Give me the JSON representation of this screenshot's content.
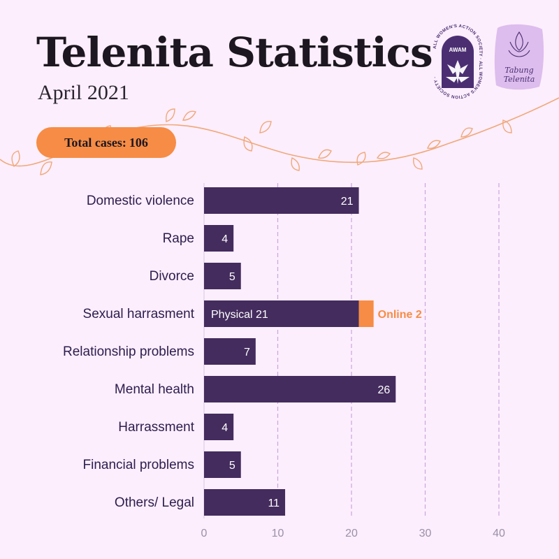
{
  "header": {
    "title": "Telenita Statistics",
    "subtitle": "April 2021",
    "badge_label": "Total cases:",
    "badge_value": "106"
  },
  "logos": {
    "awam_text": "AWAM",
    "awam_ring_text": "ALL WOMEN'S ACTION SOCIETY · ALL WOMEN'S ACTION SOCIETY ·",
    "telenita_line1": "Tabung",
    "telenita_line2": "Telenita"
  },
  "colors": {
    "background": "#fceefc",
    "bar": "#442c5e",
    "accent": "#f68c45",
    "grid": "#c9a6e0"
  },
  "chart_data": {
    "type": "bar",
    "orientation": "horizontal",
    "categories": [
      "Domestic violence",
      "Rape",
      "Divorce",
      "Sexual harrasment",
      "Relationship problems",
      "Mental health",
      "Harrassment",
      "Financial problems",
      "Others/ Legal"
    ],
    "values": [
      21,
      4,
      5,
      21,
      7,
      26,
      4,
      5,
      11
    ],
    "value_labels": [
      "21",
      "4",
      "5",
      "Physical 21",
      "7",
      "26",
      "4",
      "5",
      "11"
    ],
    "stacked_extra": {
      "category": "Sexual harrasment",
      "value": 2,
      "label": "Online 2"
    },
    "xlim": [
      0,
      40
    ],
    "xticks": [
      0,
      10,
      20,
      30,
      40
    ],
    "grid": true,
    "grid_style": "dashed-vertical"
  }
}
